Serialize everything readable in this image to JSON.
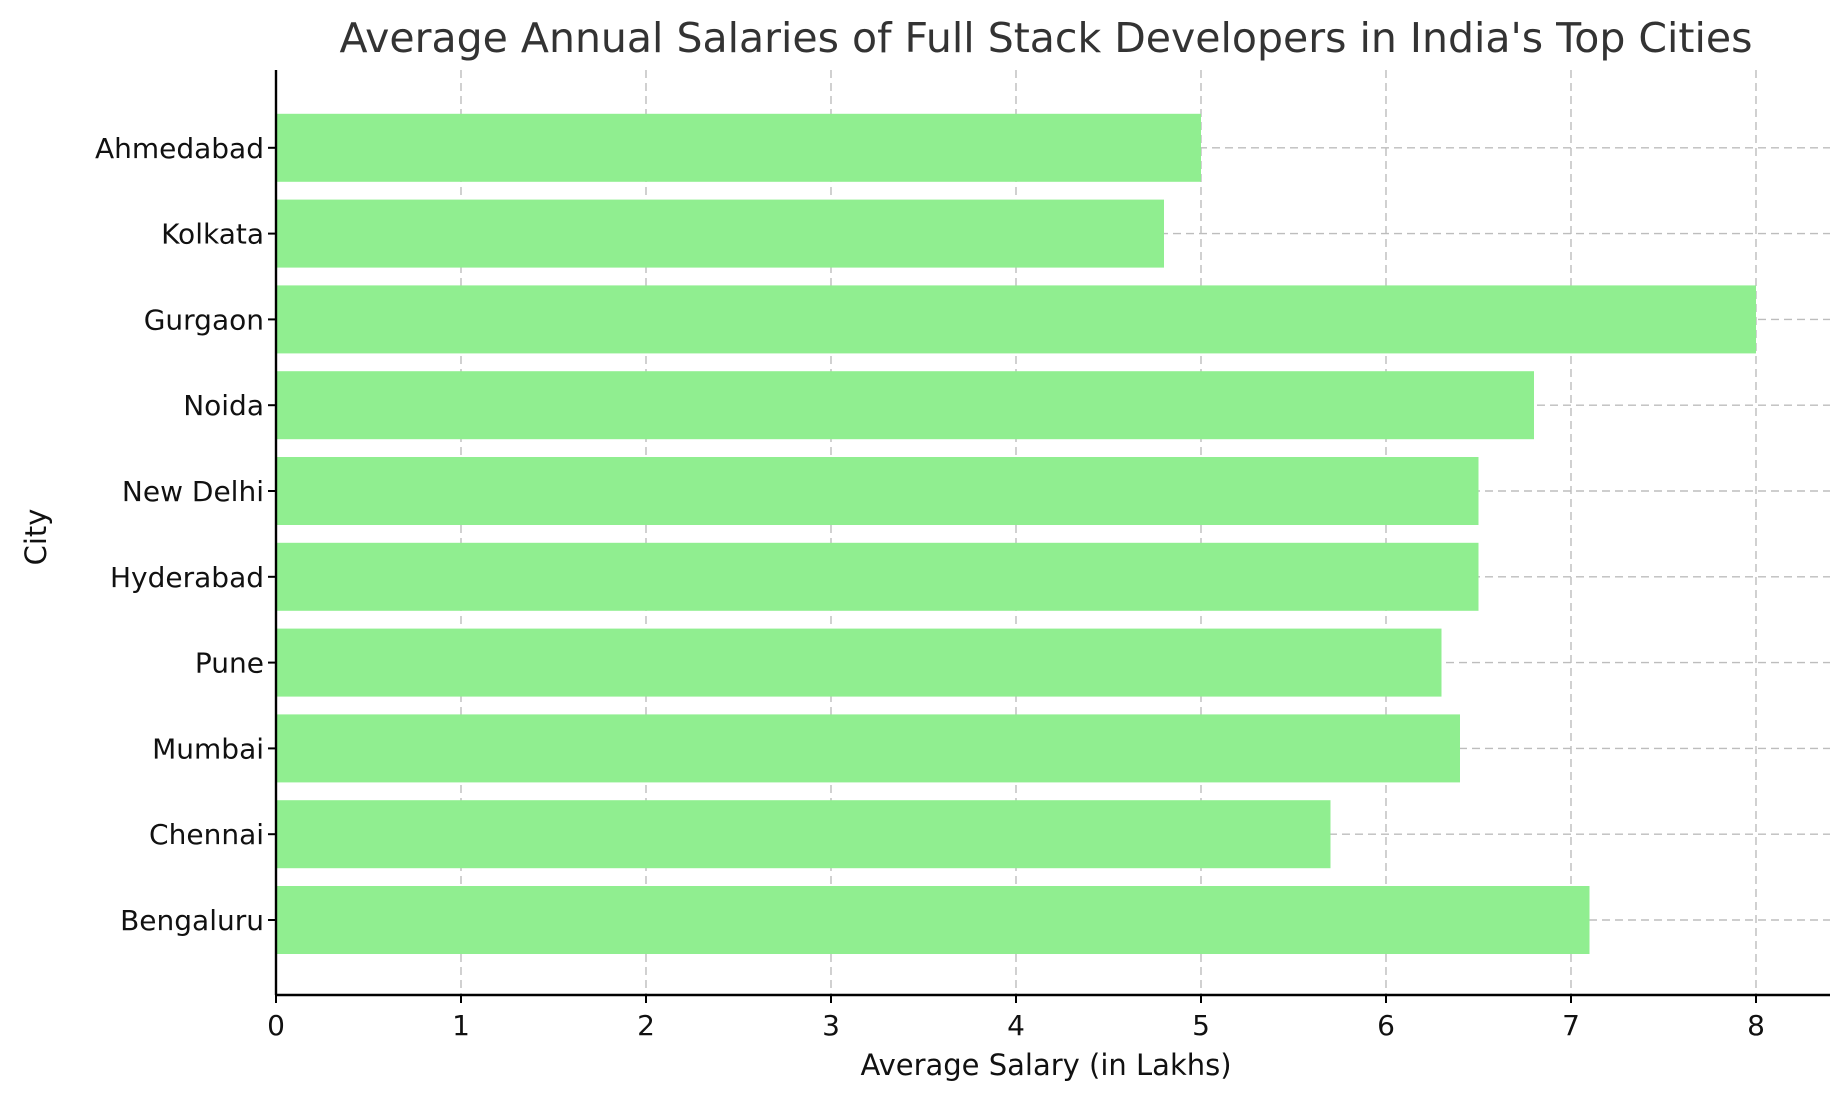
{
  "chart_data": {
    "type": "bar",
    "orientation": "horizontal",
    "title": "Average Annual Salaries of Full Stack Developers in India's Top Cities",
    "xlabel": "Average Salary (in Lakhs)",
    "ylabel": "City",
    "categories": [
      "Bengaluru",
      "Chennai",
      "Mumbai",
      "Pune",
      "Hyderabad",
      "New Delhi",
      "Noida",
      "Gurgaon",
      "Kolkata",
      "Ahmedabad"
    ],
    "values": [
      7.1,
      5.7,
      6.4,
      6.3,
      6.5,
      6.5,
      6.8,
      8.0,
      4.8,
      5.0
    ],
    "xlim": [
      0,
      8.4
    ],
    "xticks": [
      "0",
      "1",
      "2",
      "3",
      "4",
      "5",
      "6",
      "7",
      "8"
    ],
    "grid": true,
    "bar_color": "#90ee90",
    "category_order": "bottom-to-top"
  }
}
